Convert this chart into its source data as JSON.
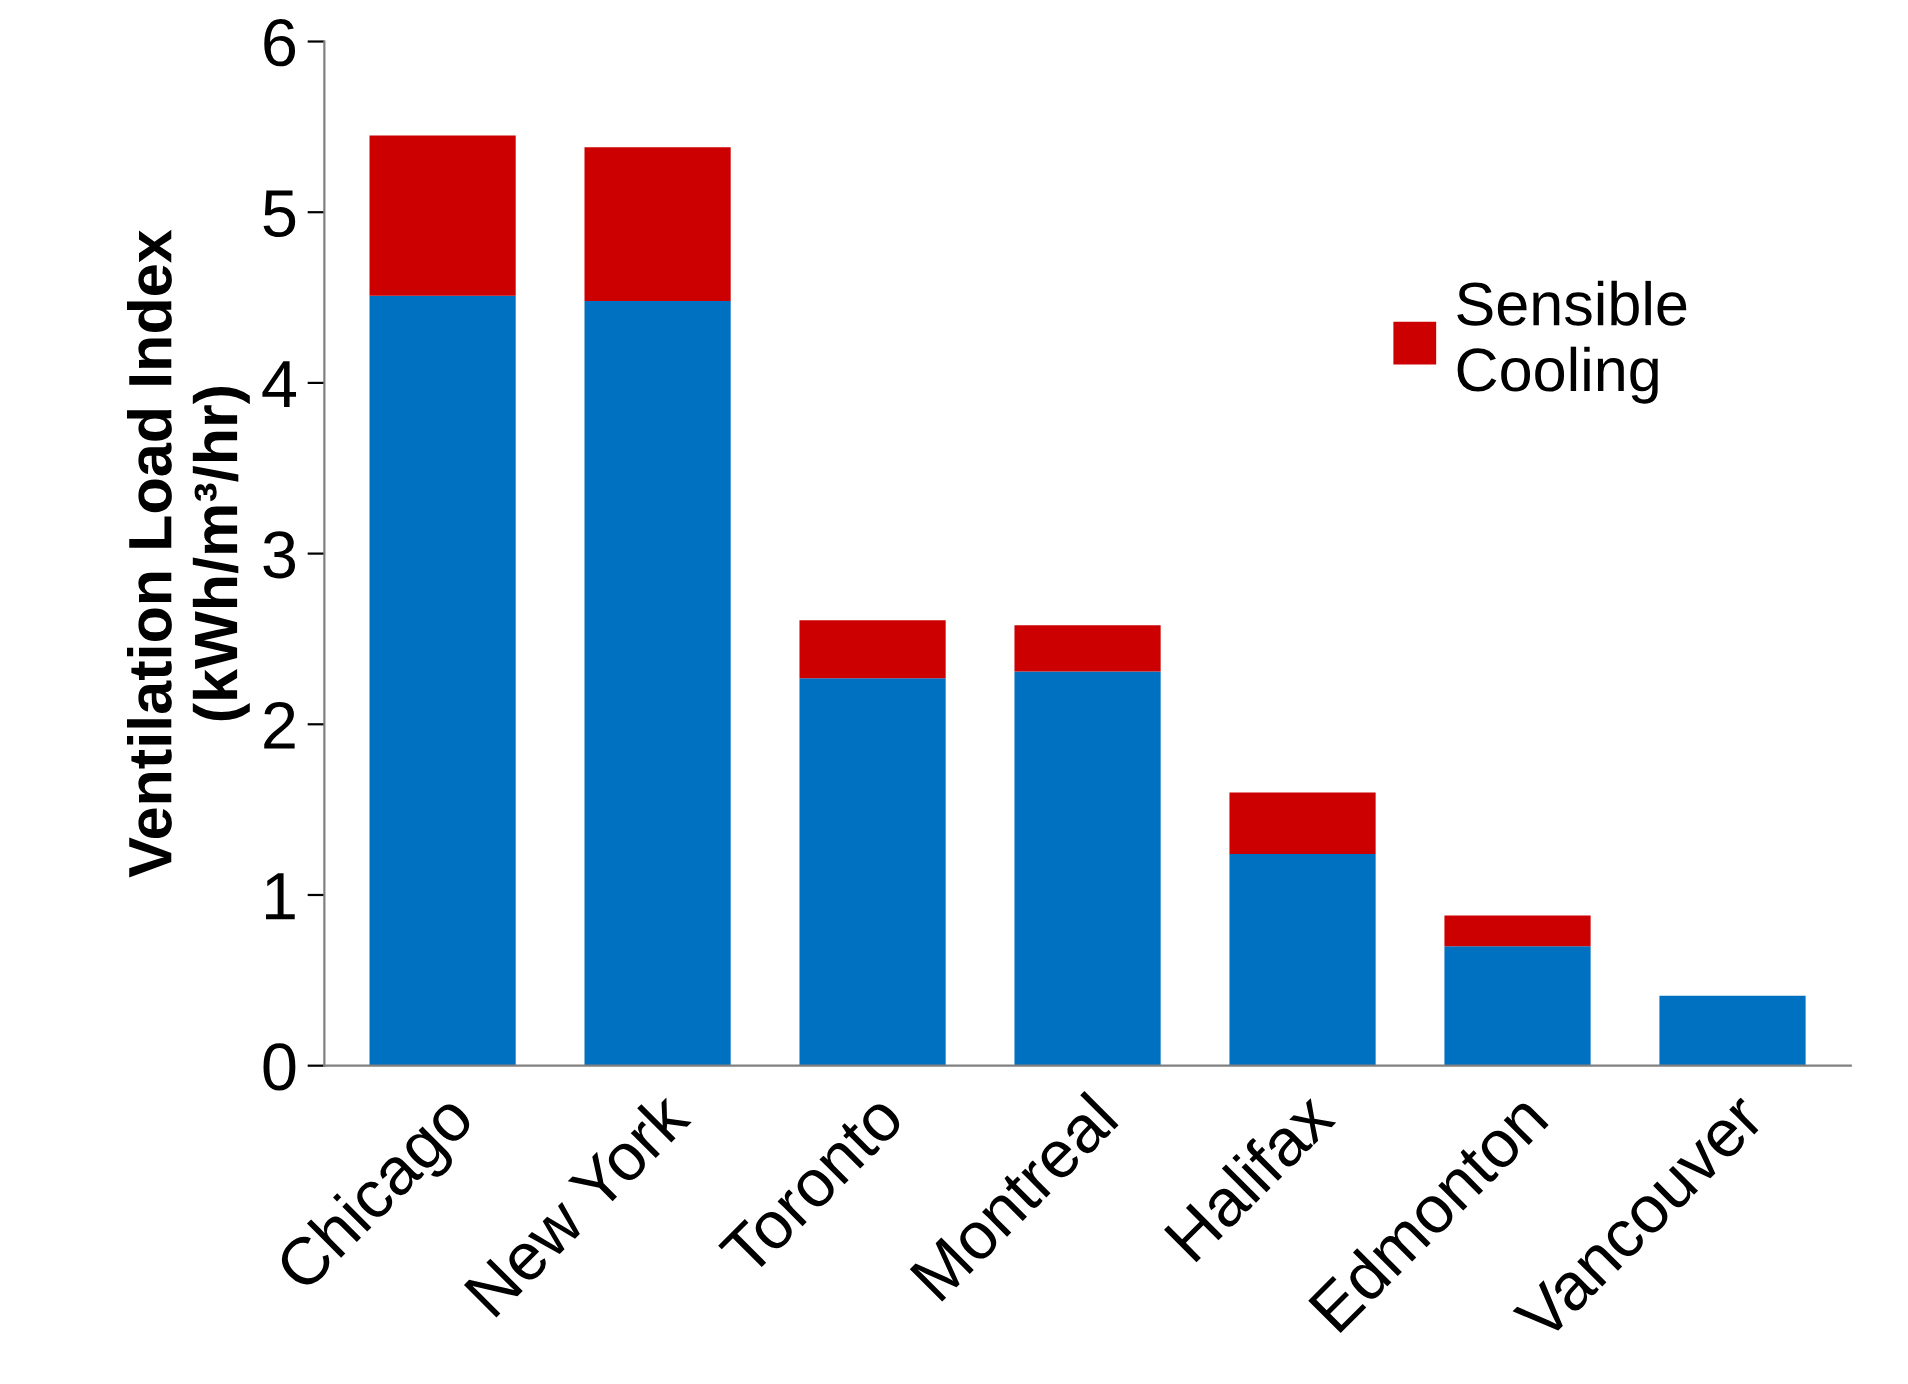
{
  "chart_data": {
    "type": "bar",
    "stacked": true,
    "ylabel": "Ventilation Load Index\n(kWh/m³/hr)",
    "categories": [
      "Chicago",
      "New York",
      "Toronto",
      "Montreal",
      "Halifax",
      "Edmonton",
      "Vancouver"
    ],
    "series": [
      {
        "color": "#0070c0",
        "values": [
          4.51,
          4.48,
          2.27,
          2.31,
          1.24,
          0.7,
          0.41
        ]
      },
      {
        "name": "Sensible\nCooling",
        "color": "#cc0000",
        "values": [
          0.94,
          0.9,
          0.34,
          0.27,
          0.36,
          0.18,
          0
        ]
      }
    ],
    "ylim": [
      0,
      6
    ],
    "yticks": [
      0,
      1,
      2,
      3,
      4,
      5,
      6
    ],
    "grid": false,
    "legend": "top right"
  }
}
